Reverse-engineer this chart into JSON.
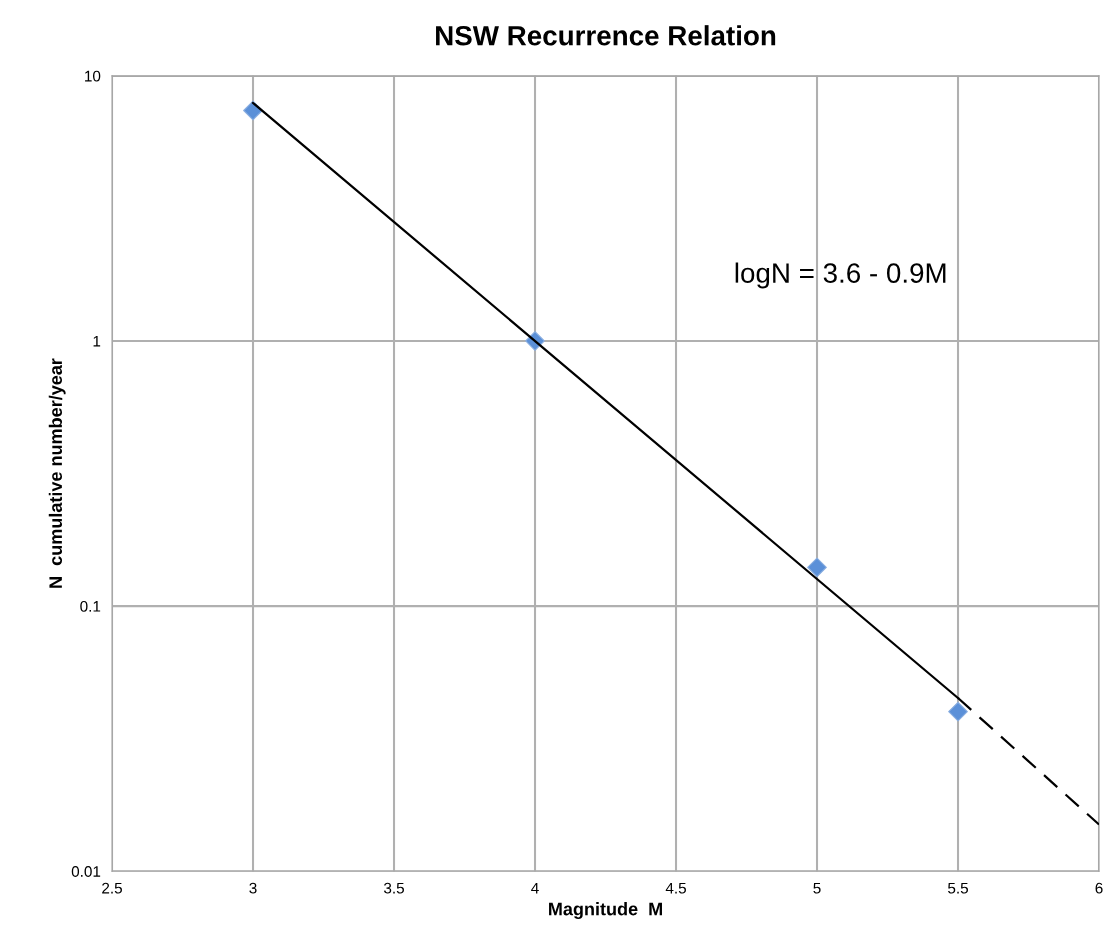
{
  "chart_data": {
    "type": "scatter",
    "title": "NSW Recurrence Relation",
    "xlabel": "Magnitude  M",
    "ylabel": "N  cumulative number/year",
    "series": [
      {
        "color": "#5b90d8",
        "x": [
          3,
          4,
          5,
          5.5
        ],
        "values": [
          7.4,
          1.0,
          0.14,
          0.04
        ],
        "marker": "diamond"
      },
      {
        "type": "line",
        "color": "#000000",
        "x": [
          3,
          5.5
        ],
        "values": [
          7.9,
          0.045
        ],
        "line_style": "solid"
      },
      {
        "type": "line",
        "color": "#000000",
        "x": [
          5.5,
          6
        ],
        "values": [
          0.045,
          0.015
        ],
        "line_style": "dashed"
      }
    ],
    "annotations": [
      "logN = 3.6 - 0.9M"
    ],
    "log": "y",
    "grid": true,
    "legend": false,
    "xlim": [
      2.5,
      6
    ],
    "xticks": [
      2.5,
      3,
      3.5,
      4,
      4.5,
      5,
      5.5,
      6
    ],
    "ylim": [
      0.01,
      10
    ],
    "yticks": [
      0.01,
      0.1,
      1,
      10
    ]
  }
}
